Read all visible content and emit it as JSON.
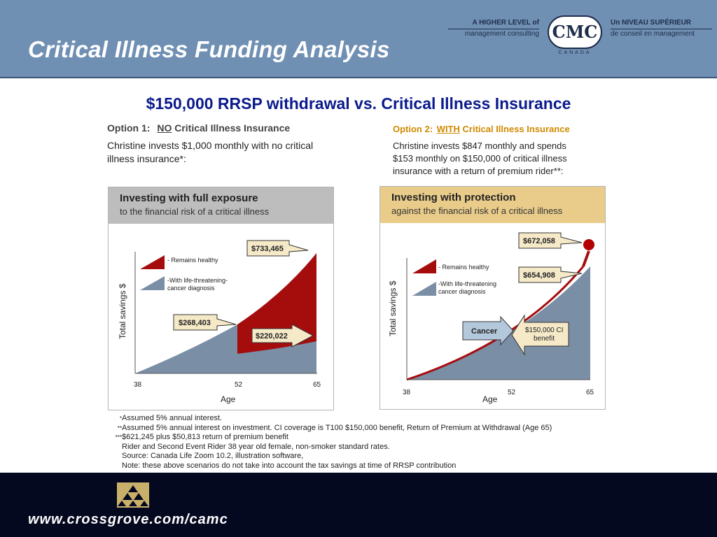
{
  "header": {
    "title": "Critical Illness Funding Analysis",
    "tagline_en_1": "A HIGHER LEVEL of",
    "tagline_en_2": "management consulting",
    "tagline_fr_1": "Un NIVEAU SUPÉRIEUR",
    "tagline_fr_2": "de conseil en management",
    "logo_text": "CMC",
    "logo_sub": "CANADA"
  },
  "subtitle": "$150,000 RRSP withdrawal vs. Critical Illness Insurance",
  "option1": {
    "heading_prefix": "Option 1:",
    "heading_emph": "NO",
    "heading_suffix": "Critical Illness Insurance",
    "text_1": "Christine invests $1,000 monthly with no critical",
    "text_2": "illness insurance*:",
    "panel_title": "Investing with full exposure",
    "panel_subtitle": "to the financial risk of a critical illness",
    "legend_healthy": "- Remains healthy",
    "legend_cancer_1": "-With life-threatening-",
    "legend_cancer_2": "cancer diagnosis",
    "ylabel": "Total savings $",
    "xlabel": "Age",
    "callout_top": "$733,465",
    "callout_mid": "$268,403",
    "callout_low": "$220,022",
    "x_ticks": [
      "38",
      "52",
      "65"
    ]
  },
  "option2": {
    "heading_prefix": "Option 2:",
    "heading_emph": "WITH",
    "heading_suffix": "Critical Illness Insurance",
    "text_1": "Christine invests $847 monthly and spends",
    "text_2": "$153 monthly on $150,000 of critical illness",
    "text_3": "insurance with a return of premium rider**:",
    "panel_title": "Investing with protection",
    "panel_subtitle": "against the financial risk of a critical illness",
    "legend_healthy": "- Remains healthy",
    "legend_cancer_1": "-With life-threatening",
    "legend_cancer_2": "cancer diagnosis",
    "ylabel": "Total savings $",
    "xlabel": "Age",
    "callout_top": "$672,058",
    "callout_mid": "$654,908",
    "cancer_label": "Cancer",
    "benefit_1": "$150,000 CI",
    "benefit_2": "benefit",
    "x_ticks": [
      "38",
      "52",
      "65"
    ]
  },
  "notes": [
    {
      "marker": "*",
      "text": "Assumed 5% annual interest."
    },
    {
      "marker": "**",
      "text": "Assumed 5% annual interest on investment. CI coverage is T100 $150,000 benefit, Return of Premium at Withdrawal (Age 65)"
    },
    {
      "marker": "***",
      "text": "$621,245 plus $50,813 return of premium benefit"
    },
    {
      "marker": "",
      "text": "Rider and Second Event Rider 38 year old female, non-smoker standard rates."
    },
    {
      "marker": "",
      "text": "Source: Canada Life Zoom 10.2, illustration software,"
    },
    {
      "marker": "",
      "text": "Note: these above scenarios do not take into account the tax savings at time of RRSP contribution"
    }
  ],
  "footer": {
    "url": "www.crossgrove.com/camc"
  },
  "colors": {
    "header_bg": "#6f8fb3",
    "title_blue": "#0a1a8c",
    "healthy_red": "#a50d0d",
    "cancer_gray": "#7a8ea6",
    "option2_orange": "#d08a00",
    "panel2_head": "#e9cc8a",
    "panel1_head": "#bdbdbd",
    "footer_bg": "#050920"
  }
}
